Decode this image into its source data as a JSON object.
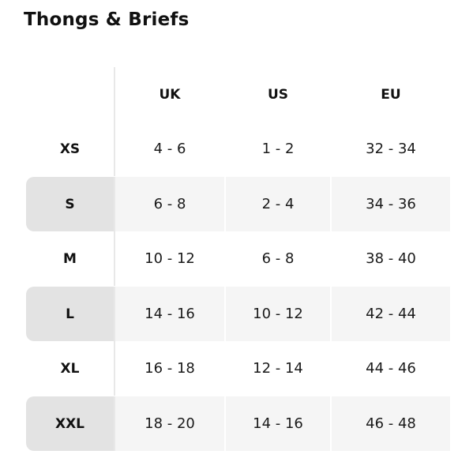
{
  "title": "Thongs & Briefs",
  "columns": [
    "UK",
    "US",
    "EU"
  ],
  "rows": [
    {
      "size": "XS",
      "uk": "4 - 6",
      "us": "1 - 2",
      "eu": "32 - 34"
    },
    {
      "size": "S",
      "uk": "6 - 8",
      "us": "2 - 4",
      "eu": "34 - 36"
    },
    {
      "size": "M",
      "uk": "10 - 12",
      "us": "6 - 8",
      "eu": "38 - 40"
    },
    {
      "size": "L",
      "uk": "14 - 16",
      "us": "10 - 12",
      "eu": "42 - 44"
    },
    {
      "size": "XL",
      "uk": "16 - 18",
      "us": "12 - 14",
      "eu": "44 - 46"
    },
    {
      "size": "XXL",
      "uk": "18 - 20",
      "us": "14 - 16",
      "eu": "46 - 48"
    }
  ],
  "colors": {
    "text": "#111111",
    "shaded_row": "#f5f5f5",
    "shaded_label": "#e3e3e3",
    "divider": "#e8e8e8"
  }
}
